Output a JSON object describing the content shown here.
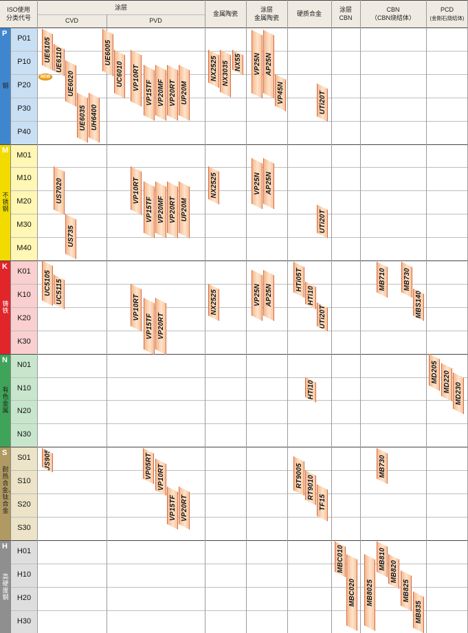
{
  "header": {
    "iso_label_1": "ISO使用",
    "iso_label_2": "分类代号",
    "coated_label": "涂层",
    "cvd_label": "CVD",
    "pvd_label": "PVD",
    "cermet_label": "金属陶瓷",
    "coated_cermet_1": "涂层",
    "coated_cermet_2": "金属陶瓷",
    "carbide_label": "硬质合金",
    "coated_cbn_1": "涂层",
    "coated_cbn_2": "CBN",
    "cbn_1": "CBN",
    "cbn_2": "（CBN烧结体）",
    "pcd_1": "PCD",
    "pcd_2": "(金刚石烧结体)"
  },
  "groups": [
    {
      "letter": "P",
      "name": "钢",
      "color": "#3f86cf",
      "light": "#c9dff3",
      "codes": [
        "P01",
        "P10",
        "P20",
        "P30",
        "P40"
      ]
    },
    {
      "letter": "M",
      "name": "不锈钢",
      "color": "#f2dc00",
      "light": "#fff7b3",
      "codes": [
        "M01",
        "M10",
        "M20",
        "M30",
        "M40"
      ]
    },
    {
      "letter": "K",
      "name": "铸铁",
      "color": "#e0262a",
      "light": "#f9cfd0",
      "codes": [
        "K01",
        "K10",
        "K20",
        "K30"
      ]
    },
    {
      "letter": "N",
      "name": "有色金属",
      "color": "#3fa45a",
      "light": "#c8e6cc",
      "codes": [
        "N01",
        "N10",
        "N20",
        "N30"
      ]
    },
    {
      "letter": "S",
      "name": "耐热合金、钛合金",
      "color": "#b09a62",
      "light": "#ece3c8",
      "codes": [
        "S01",
        "S10",
        "S20",
        "S30"
      ]
    },
    {
      "letter": "H",
      "name": "高硬度钢",
      "color": "#8f8f8f",
      "light": "#dedede",
      "codes": [
        "H01",
        "H10",
        "H20",
        "H30"
      ]
    }
  ],
  "new_badge": "NEW",
  "grades": [
    "UE6105",
    "UE6110",
    "UE6020",
    "UE6035",
    "UH6400",
    "UE6005",
    "UC6010",
    "VP10RT",
    "VP15TF",
    "VP20MF",
    "VP20RT",
    "UP20M",
    "NX2525",
    "NX3035",
    "NX55",
    "VP25N",
    "AP25N",
    "VP45N",
    "UTi20T",
    "US7020",
    "US735",
    "VP10RT",
    "VP15TF",
    "VP20MF",
    "VP20RT",
    "UP20M",
    "NX2525",
    "VP25N",
    "AP25N",
    "UTi20T",
    "UC5105",
    "UC5115",
    "VP10RT",
    "VP15TF",
    "VP20RT",
    "NX2525",
    "VP25N",
    "AP25N",
    "HTi05T",
    "HTi10",
    "UTi20T",
    "MB710",
    "MB730",
    "MBS140",
    "HTi10",
    "MD205",
    "MD220",
    "MD230",
    "US905",
    "VP05RT",
    "VP10RT",
    "VP15TF",
    "VP20RT",
    "RT9005",
    "RT9010",
    "TF15",
    "MB730",
    "MBC010",
    "MBC020",
    "MB8025",
    "MB810",
    "MB820",
    "MB825",
    "MB835"
  ]
}
